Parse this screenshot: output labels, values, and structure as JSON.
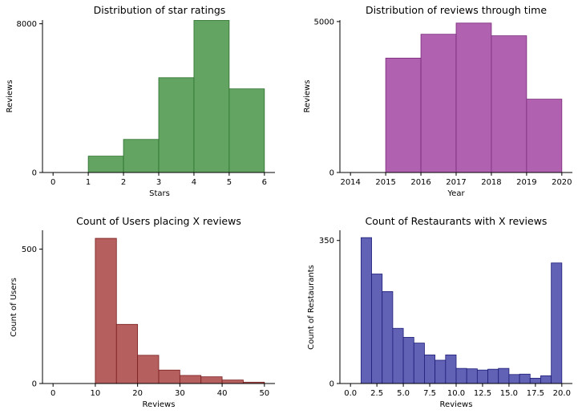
{
  "chart_data": [
    {
      "id": "stars",
      "type": "bar",
      "title": "Distribution of star ratings",
      "xlabel": "Stars",
      "ylabel": "Reviews",
      "xlim": [
        -0.3,
        6.3
      ],
      "ylim": [
        0,
        8200
      ],
      "xticks": [
        0,
        1,
        2,
        3,
        4,
        5,
        6
      ],
      "xtick_labels": [
        "0",
        "1",
        "2",
        "3",
        "4",
        "5",
        "6"
      ],
      "yticks": [
        0,
        8000
      ],
      "ytick_labels": [
        "0",
        "8000"
      ],
      "bins": [
        [
          1,
          2
        ],
        [
          2,
          3
        ],
        [
          3,
          4
        ],
        [
          4,
          5
        ],
        [
          5,
          6
        ]
      ],
      "values": [
        880,
        1780,
        5100,
        8180,
        4500
      ],
      "fill": "#63a463",
      "edge": "#2a6e2a"
    },
    {
      "id": "years",
      "type": "bar",
      "title": "Distribution of reviews through time",
      "xlabel": "Year",
      "ylabel": "Reviews",
      "xlim": [
        2013.7,
        2020.3
      ],
      "ylim": [
        0,
        5050
      ],
      "xticks": [
        2014,
        2015,
        2016,
        2017,
        2018,
        2019,
        2020
      ],
      "xtick_labels": [
        "2014",
        "2015",
        "2016",
        "2017",
        "2018",
        "2019",
        "2020"
      ],
      "yticks": [
        0,
        5000
      ],
      "ytick_labels": [
        "0",
        "5000"
      ],
      "bins": [
        [
          2015,
          2016
        ],
        [
          2016,
          2017
        ],
        [
          2017,
          2018
        ],
        [
          2018,
          2019
        ],
        [
          2019,
          2020
        ]
      ],
      "values": [
        3790,
        4580,
        4950,
        4530,
        2430
      ],
      "fill": "#b062b0",
      "edge": "#7a2a7a"
    },
    {
      "id": "users",
      "type": "bar",
      "title": "Count of Users placing X reviews",
      "xlabel": "Reviews",
      "ylabel": "Count of Users",
      "xlim": [
        -2.5,
        52.5
      ],
      "ylim": [
        0,
        570
      ],
      "xticks": [
        0,
        10,
        20,
        30,
        40,
        50
      ],
      "xtick_labels": [
        "0",
        "10",
        "20",
        "30",
        "40",
        "50"
      ],
      "yticks": [
        0,
        500
      ],
      "ytick_labels": [
        "0",
        "500"
      ],
      "bins": [
        [
          10,
          15
        ],
        [
          15,
          20
        ],
        [
          20,
          25
        ],
        [
          25,
          30
        ],
        [
          30,
          35
        ],
        [
          35,
          40
        ],
        [
          40,
          45
        ],
        [
          45,
          50
        ]
      ],
      "values": [
        540,
        220,
        105,
        50,
        30,
        25,
        13,
        5
      ],
      "fill": "#b55f5f",
      "edge": "#7a1e1e"
    },
    {
      "id": "restaurants",
      "type": "bar",
      "title": "Count of Restaurants with X reviews",
      "xlabel": "Reviews",
      "ylabel": "Count of Restaurants",
      "xlim": [
        -1.0,
        21.0
      ],
      "ylim": [
        0,
        375
      ],
      "xticks": [
        0,
        2.5,
        5,
        7.5,
        10,
        12.5,
        15,
        17.5,
        20
      ],
      "xtick_labels": [
        "0.0",
        "2.5",
        "5.0",
        "7.5",
        "10.0",
        "12.5",
        "15.0",
        "17.5",
        "20.0"
      ],
      "yticks": [
        0,
        350
      ],
      "ytick_labels": [
        "0",
        "350"
      ],
      "bins": [
        [
          1,
          2
        ],
        [
          2,
          3
        ],
        [
          3,
          4
        ],
        [
          4,
          5
        ],
        [
          5,
          6
        ],
        [
          6,
          7
        ],
        [
          7,
          8
        ],
        [
          8,
          9
        ],
        [
          9,
          10
        ],
        [
          10,
          11
        ],
        [
          11,
          12
        ],
        [
          12,
          13
        ],
        [
          13,
          14
        ],
        [
          14,
          15
        ],
        [
          15,
          16
        ],
        [
          16,
          17
        ],
        [
          17,
          18
        ],
        [
          18,
          19
        ],
        [
          19,
          20
        ]
      ],
      "values": [
        357,
        268,
        225,
        135,
        113,
        99,
        70,
        57,
        70,
        37,
        36,
        33,
        35,
        37,
        22,
        23,
        13,
        19,
        295
      ],
      "fill": "#6161b5",
      "edge": "#1e1e7a"
    }
  ]
}
